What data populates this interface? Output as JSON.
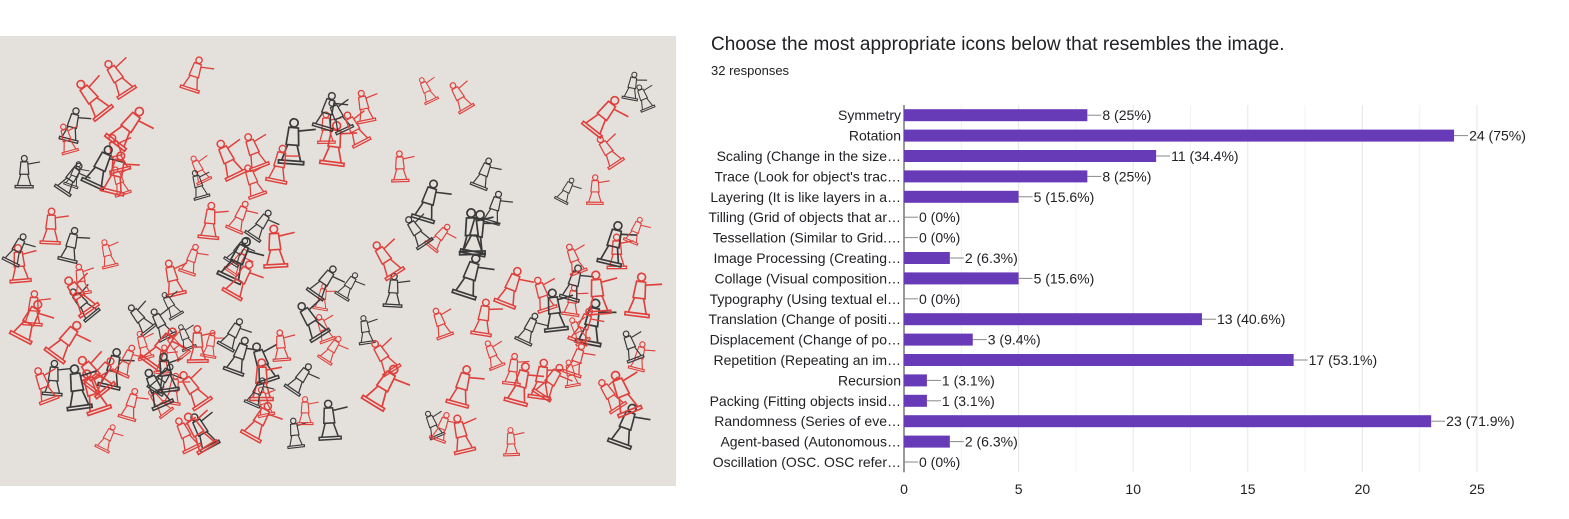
{
  "question": {
    "title": "Choose the most appropriate icons below that resembles the image.",
    "responses": "32 responses"
  },
  "artwork": {
    "description_icon": "toy-soldiers-artwork-image",
    "colors": {
      "red": "#e0403c",
      "black": "#3a3a3a",
      "background": "#e4e0dc"
    }
  },
  "colors": {
    "bar": "#673ab7",
    "grid": "#e6e6e6",
    "axis": "#333333",
    "text": "#202124"
  },
  "chart_data": {
    "type": "bar",
    "orientation": "horizontal",
    "categories": [
      "Symmetry",
      "Rotation",
      "Scaling (Change in the size…",
      "Trace (Look for object's trac…",
      "Layering (It is like layers in a…",
      "Tilling (Grid of objects that ar…",
      "Tessellation (Similar to Grid.…",
      "Image Processing (Creating…",
      "Collage (Visual composition…",
      "Typography (Using textual el…",
      "Translation (Change of positi…",
      "Displacement (Change of po…",
      "Repetition (Repeating an im…",
      "Recursion",
      "Packing (Fitting objects insid…",
      "Randomness (Series of eve…",
      "Agent-based (Autonomous…",
      "Oscillation (OSC. OSC refer…"
    ],
    "values": [
      8,
      24,
      11,
      8,
      5,
      0,
      0,
      2,
      5,
      0,
      13,
      3,
      17,
      1,
      1,
      23,
      2,
      0
    ],
    "data_labels": [
      "8 (25%)",
      "24 (75%)",
      "11 (34.4%)",
      "8 (25%)",
      "5 (15.6%)",
      "0 (0%)",
      "0 (0%)",
      "2 (6.3%)",
      "5 (15.6%)",
      "0 (0%)",
      "13 (40.6%)",
      "3 (9.4%)",
      "17 (53.1%)",
      "1 (3.1%)",
      "1 (3.1%)",
      "23 (71.9%)",
      "2 (6.3%)",
      "0 (0%)"
    ],
    "xlim": [
      0,
      25
    ],
    "xticks": [
      0,
      5,
      10,
      15,
      20,
      25
    ],
    "tick_labels": [
      "0",
      "5",
      "10",
      "15",
      "20",
      "25"
    ],
    "grid": true,
    "legend": "none"
  }
}
